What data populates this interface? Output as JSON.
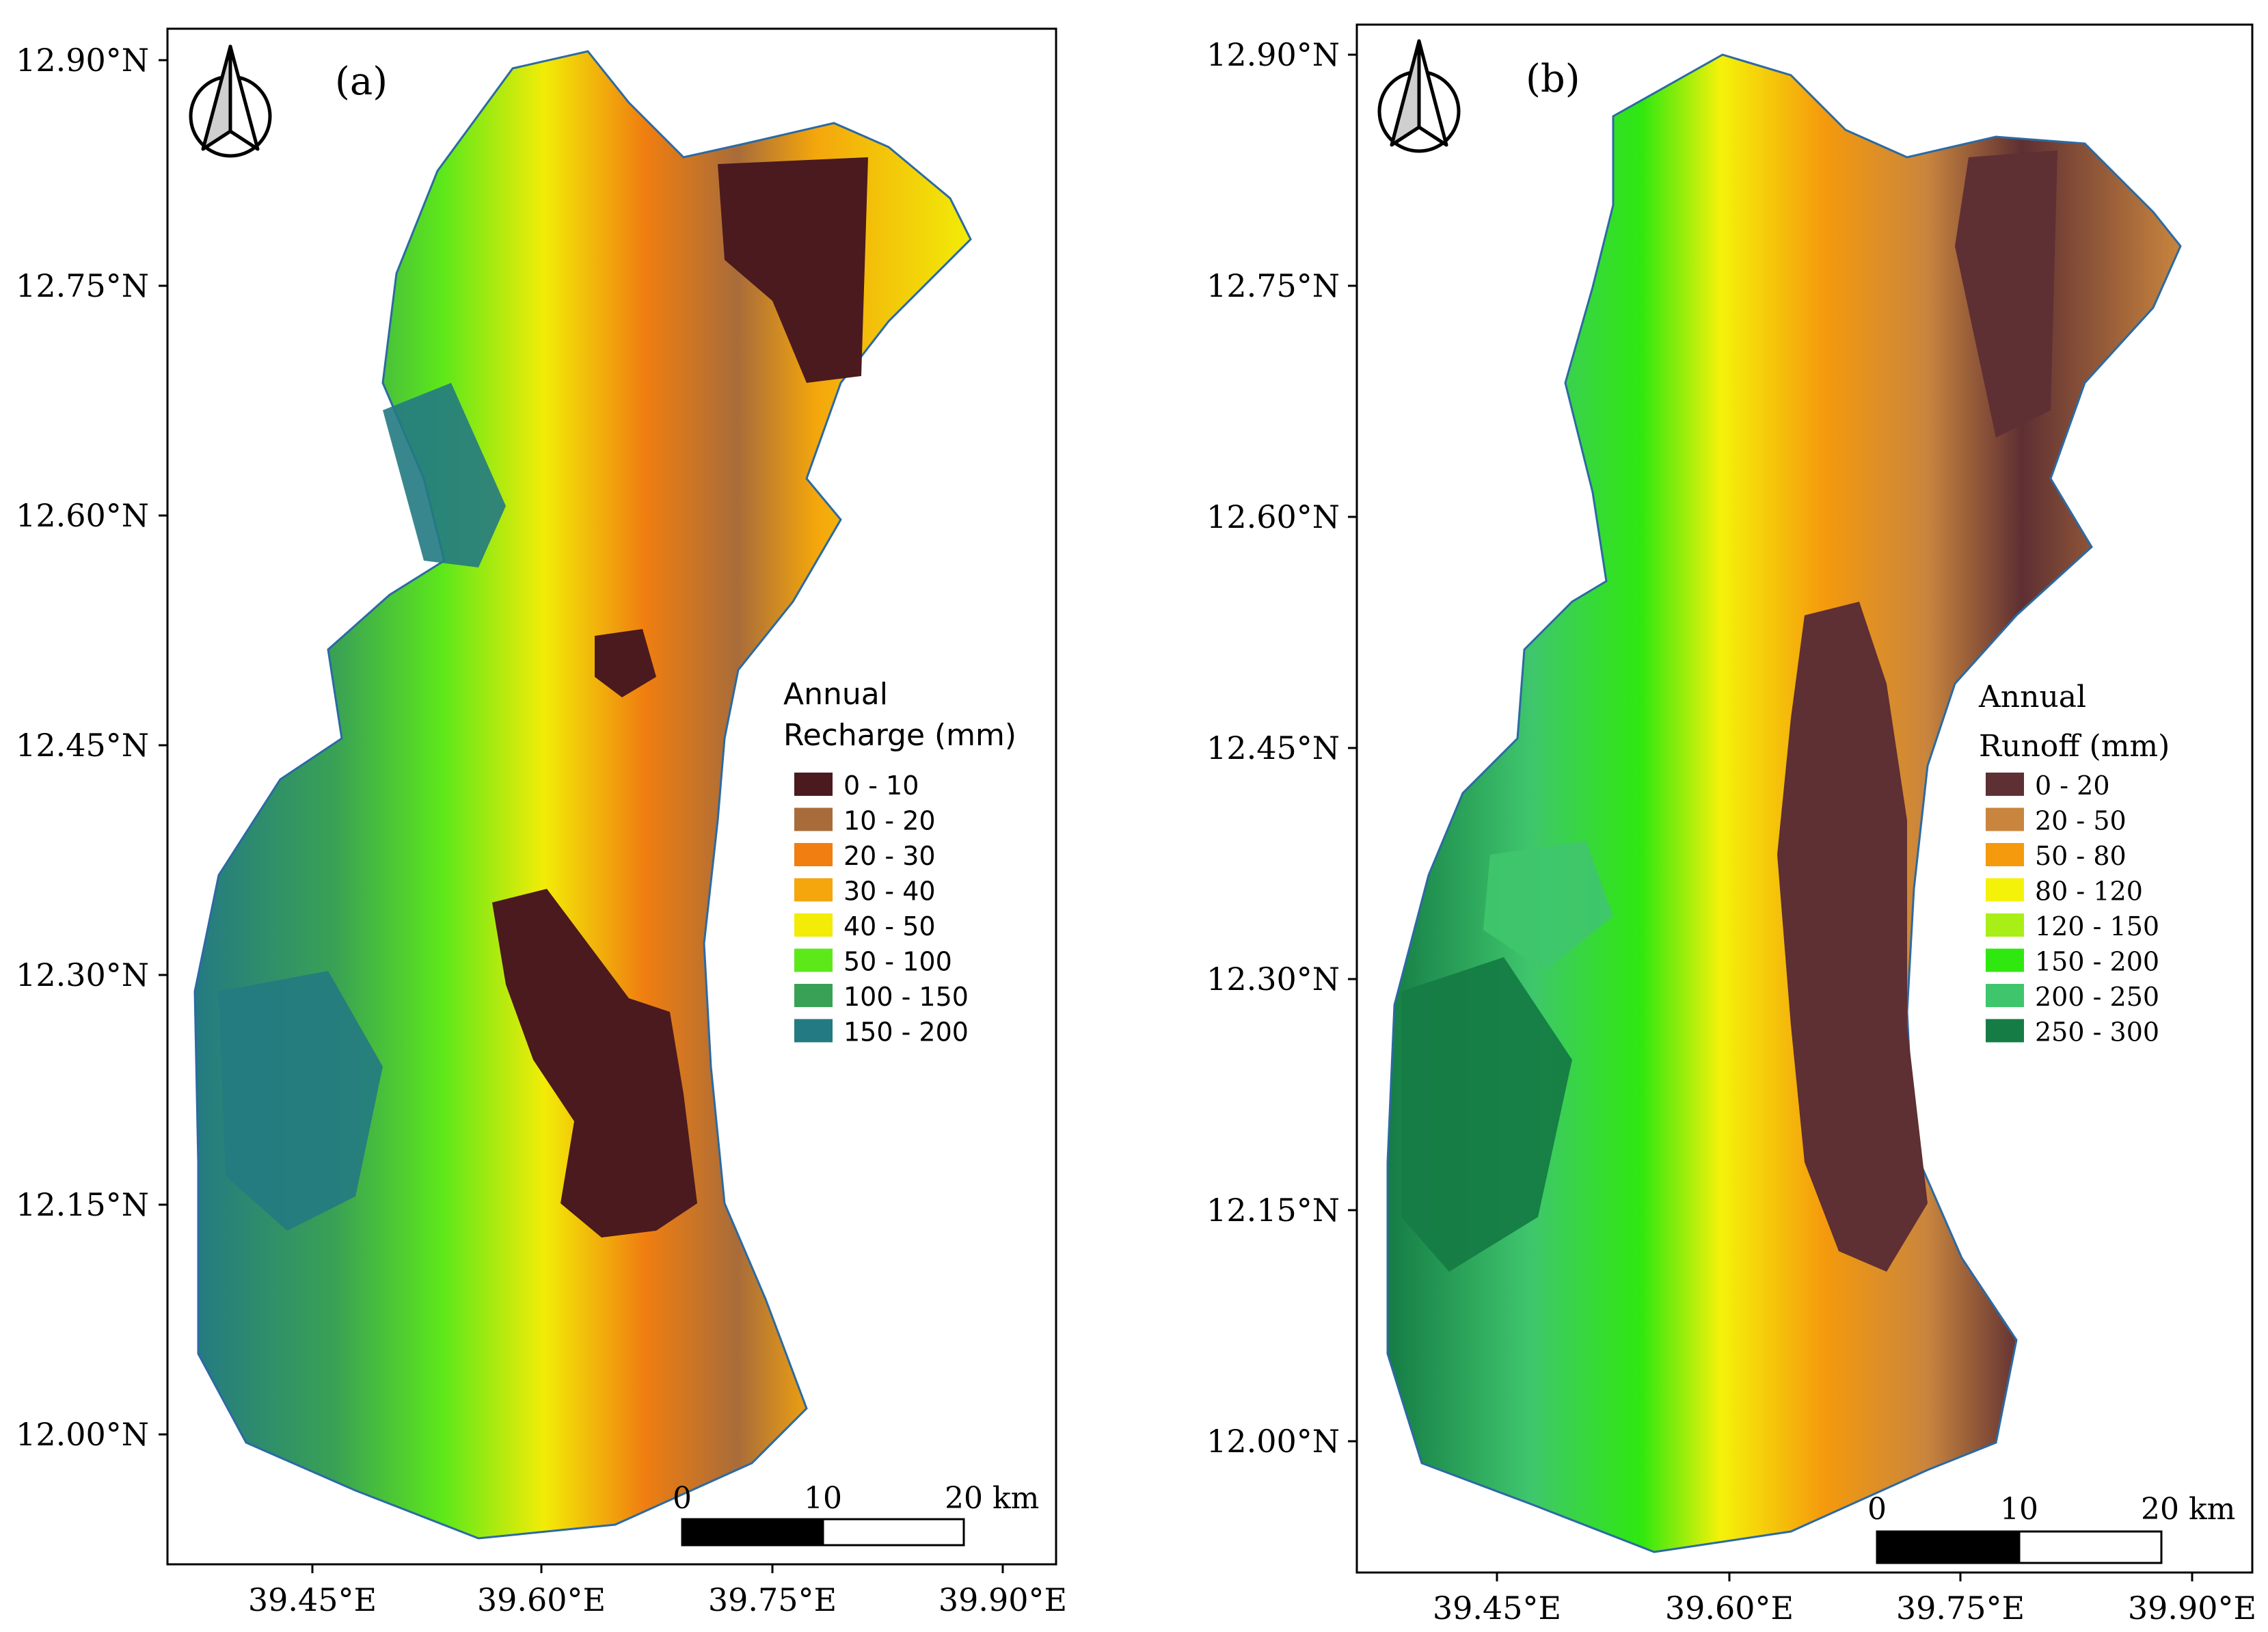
{
  "panels": [
    {
      "id": "a",
      "label": "(a)",
      "lat_ticks": [
        "12.90°N",
        "12.75°N",
        "12.60°N",
        "12.45°N",
        "12.30°N",
        "12.15°N",
        "12.00°N"
      ],
      "lon_ticks": [
        "39.45°E",
        "39.60°E",
        "39.75°E",
        "39.90°E"
      ],
      "legend": {
        "title_line1": "Annual",
        "title_line2": "Recharge (mm)",
        "classes": [
          {
            "label": "0 - 10",
            "color": "#4a1a1e"
          },
          {
            "label": "10 - 20",
            "color": "#a86c3a"
          },
          {
            "label": "20 - 30",
            "color": "#f07e10"
          },
          {
            "label": "30 - 40",
            "color": "#f4a60c"
          },
          {
            "label": "40 - 50",
            "color": "#f2ec07"
          },
          {
            "label": "50 - 100",
            "color": "#5de81a"
          },
          {
            "label": "100 - 150",
            "color": "#39a155"
          },
          {
            "label": "150 - 200",
            "color": "#247a82"
          }
        ]
      },
      "scale_bar": {
        "ticks": [
          "0",
          "10",
          "20 km"
        ]
      }
    },
    {
      "id": "b",
      "label": "(b)",
      "lat_ticks": [
        "12.90°N",
        "12.75°N",
        "12.60°N",
        "12.45°N",
        "12.30°N",
        "12.15°N",
        "12.00°N"
      ],
      "lon_ticks": [
        "39.45°E",
        "39.60°E",
        "39.75°E",
        "39.90°E"
      ],
      "legend": {
        "title_line1": "Annual",
        "title_line2": "Runoff (mm)",
        "classes": [
          {
            "label": "0 - 20",
            "color": "#5e2f33"
          },
          {
            "label": "20 - 50",
            "color": "#c9853e"
          },
          {
            "label": "50 - 80",
            "color": "#f59a0c"
          },
          {
            "label": "80 - 120",
            "color": "#f5f20a"
          },
          {
            "label": "120 - 150",
            "color": "#a8ef18"
          },
          {
            "label": "150 - 200",
            "color": "#2fe80f"
          },
          {
            "label": "200 - 250",
            "color": "#3fc66d"
          },
          {
            "label": "250 - 300",
            "color": "#157c45"
          }
        ]
      },
      "scale_bar": {
        "ticks": [
          "0",
          "10",
          "20 km"
        ]
      }
    }
  ]
}
